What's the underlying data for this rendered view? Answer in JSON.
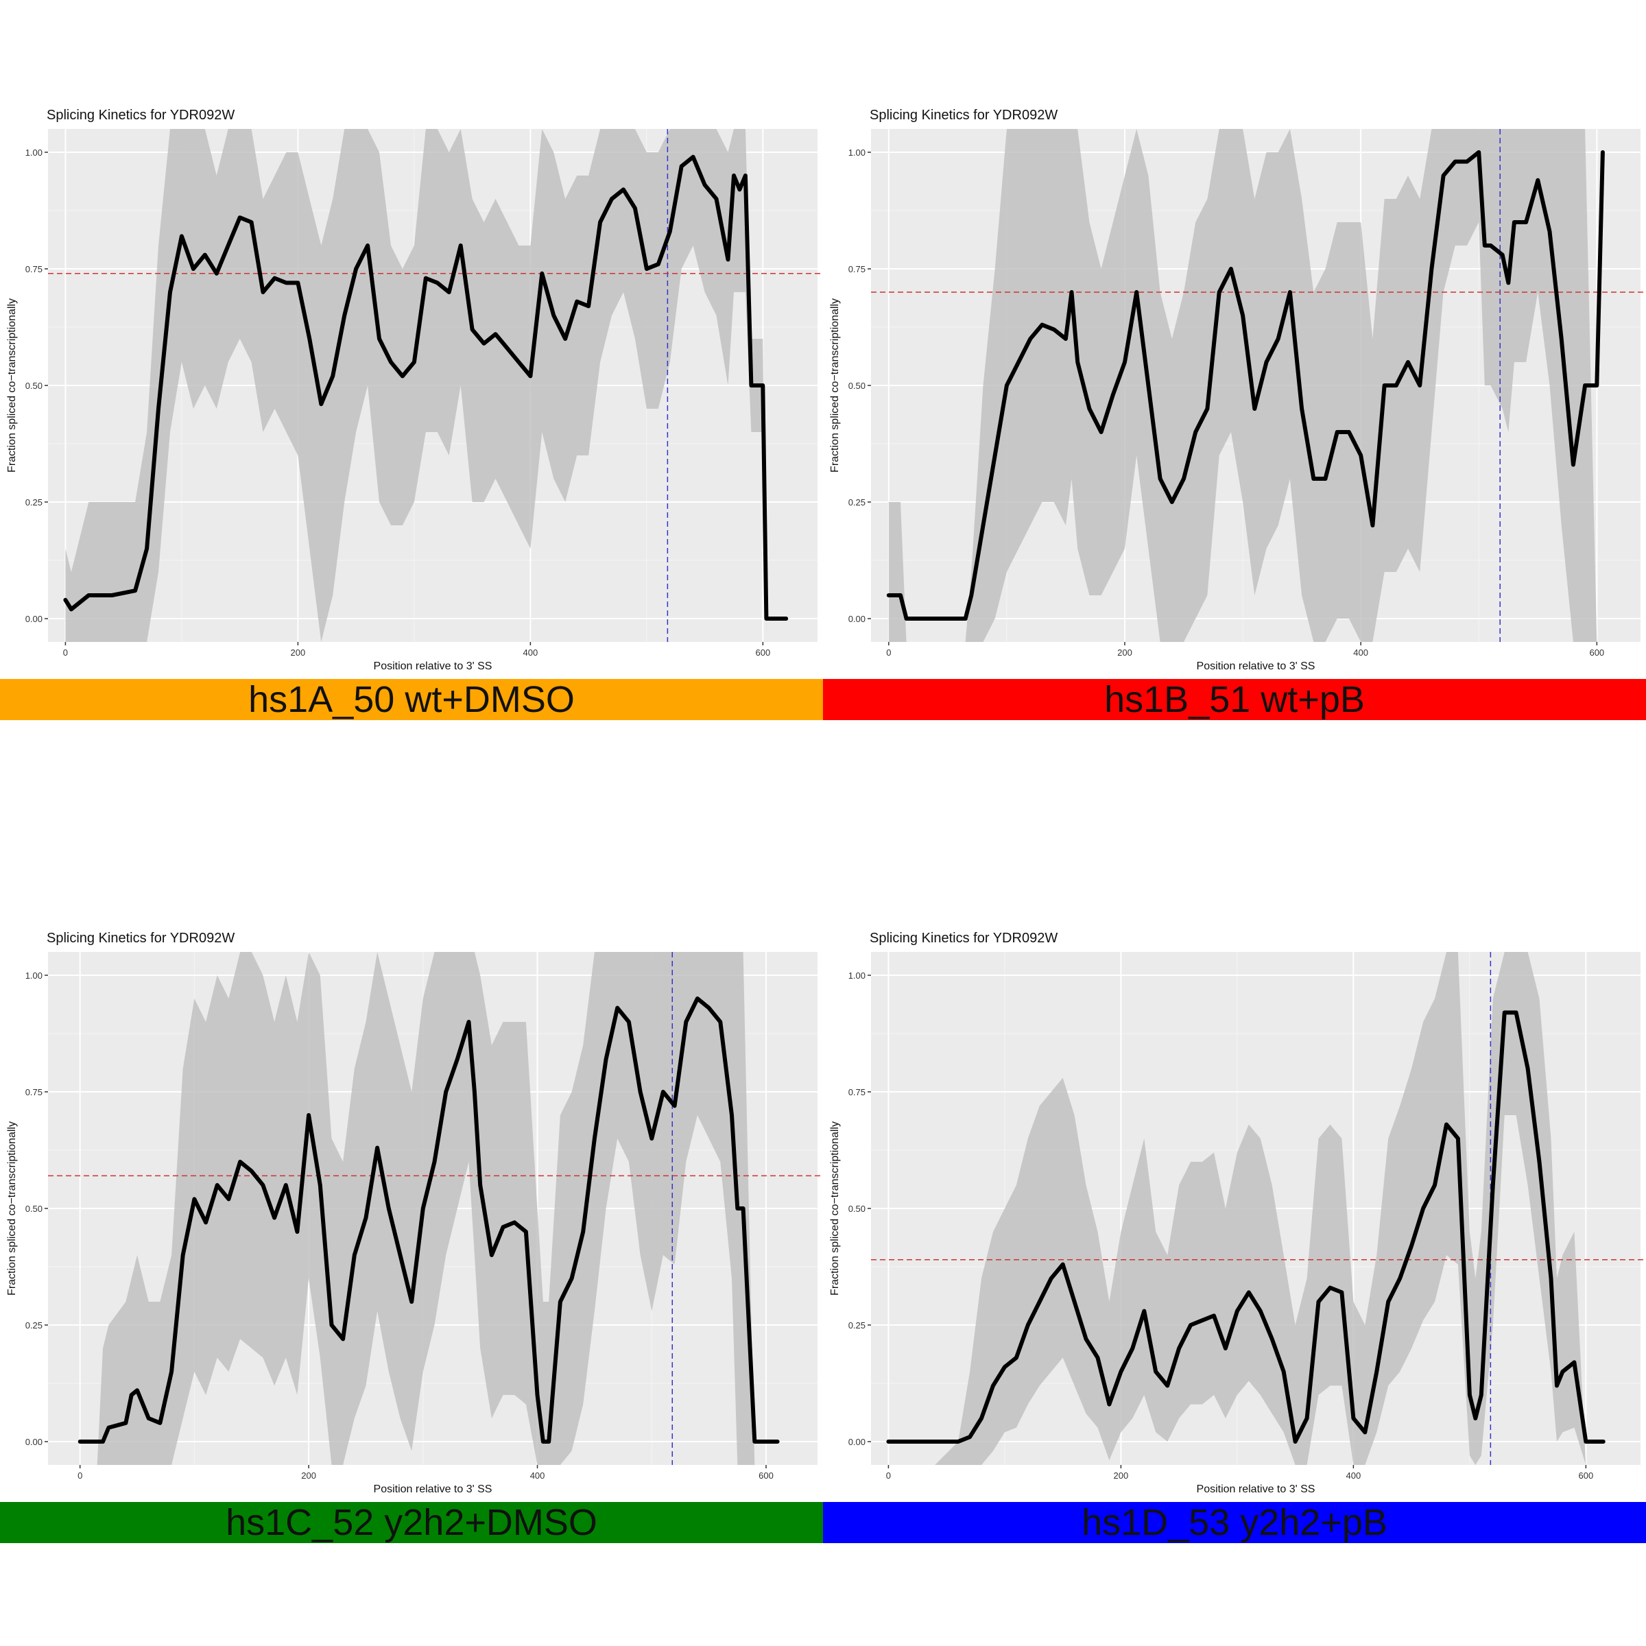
{
  "chart_data": [
    {
      "type": "line",
      "title": "Splicing Kinetics for YDR092W",
      "xlabel": "Position relative to 3' SS",
      "ylabel": "Fraction spliced co−transcriptionally",
      "xlim": [
        -15,
        647
      ],
      "ylim": [
        -0.05,
        1.05
      ],
      "xticks": [
        "0",
        "200",
        "400",
        "600"
      ],
      "yticks": [
        "0.00",
        "0.25",
        "0.50",
        "0.75",
        "1.00"
      ],
      "grid": true,
      "banner": "hs1A_50 wt+DMSO",
      "banner_color": "#FFA500",
      "hline": 0.74,
      "vline": 518,
      "x": [
        0,
        5,
        20,
        40,
        60,
        70,
        80,
        90,
        100,
        110,
        120,
        130,
        140,
        150,
        160,
        170,
        180,
        190,
        200,
        210,
        220,
        230,
        240,
        250,
        260,
        270,
        280,
        290,
        300,
        310,
        320,
        330,
        340,
        350,
        360,
        370,
        380,
        390,
        400,
        410,
        420,
        430,
        440,
        450,
        460,
        470,
        480,
        490,
        500,
        510,
        520,
        530,
        540,
        550,
        560,
        570,
        575,
        580,
        585,
        590,
        600,
        603,
        610,
        620
      ],
      "values": [
        0.04,
        0.02,
        0.05,
        0.05,
        0.06,
        0.15,
        0.45,
        0.7,
        0.82,
        0.75,
        0.78,
        0.74,
        0.8,
        0.86,
        0.85,
        0.7,
        0.73,
        0.72,
        0.72,
        0.6,
        0.46,
        0.52,
        0.65,
        0.75,
        0.8,
        0.6,
        0.55,
        0.52,
        0.55,
        0.73,
        0.72,
        0.7,
        0.8,
        0.62,
        0.59,
        0.61,
        0.58,
        0.55,
        0.52,
        0.74,
        0.65,
        0.6,
        0.68,
        0.67,
        0.85,
        0.9,
        0.92,
        0.88,
        0.75,
        0.76,
        0.83,
        0.97,
        0.99,
        0.93,
        0.9,
        0.77,
        0.95,
        0.92,
        0.95,
        0.5,
        0.5,
        0.0,
        0.0,
        0.0
      ],
      "ci_upper": [
        0.15,
        0.1,
        0.25,
        0.25,
        0.25,
        0.4,
        0.8,
        1.05,
        1.05,
        1.05,
        1.05,
        0.95,
        1.05,
        1.05,
        1.05,
        0.9,
        0.95,
        1.0,
        1.0,
        0.9,
        0.8,
        0.9,
        1.05,
        1.05,
        1.05,
        1.0,
        0.8,
        0.75,
        0.8,
        1.05,
        1.05,
        1.0,
        1.05,
        0.9,
        0.85,
        0.9,
        0.85,
        0.8,
        0.8,
        1.05,
        1.0,
        0.9,
        0.95,
        0.95,
        1.05,
        1.05,
        1.05,
        1.05,
        1.0,
        1.0,
        1.05,
        1.05,
        1.05,
        1.05,
        1.05,
        1.0,
        1.05,
        1.05,
        1.05,
        0.6,
        0.6,
        -0.05,
        -0.05,
        -0.05
      ],
      "ci_lower": [
        -0.05,
        -0.05,
        -0.05,
        -0.05,
        -0.05,
        -0.05,
        0.1,
        0.4,
        0.55,
        0.45,
        0.5,
        0.45,
        0.55,
        0.6,
        0.55,
        0.4,
        0.45,
        0.4,
        0.35,
        0.15,
        -0.05,
        0.05,
        0.25,
        0.4,
        0.5,
        0.25,
        0.2,
        0.2,
        0.25,
        0.4,
        0.4,
        0.35,
        0.5,
        0.25,
        0.25,
        0.3,
        0.25,
        0.2,
        0.15,
        0.4,
        0.3,
        0.25,
        0.35,
        0.35,
        0.55,
        0.65,
        0.7,
        0.6,
        0.45,
        0.45,
        0.55,
        0.75,
        0.8,
        0.7,
        0.65,
        0.5,
        0.7,
        0.7,
        0.7,
        0.4,
        0.4,
        -0.05,
        -0.05,
        -0.05
      ]
    },
    {
      "type": "line",
      "title": "Splicing Kinetics for YDR092W",
      "xlabel": "Position relative to 3' SS",
      "ylabel": "Fraction spliced co−transcriptionally",
      "xlim": [
        -15,
        637
      ],
      "ylim": [
        -0.05,
        1.05
      ],
      "xticks": [
        "0",
        "200",
        "400",
        "600"
      ],
      "yticks": [
        "0.00",
        "0.25",
        "0.50",
        "0.75",
        "1.00"
      ],
      "grid": true,
      "banner": "hs1B_51 wt+pB",
      "banner_color": "#FF0000",
      "hline": 0.7,
      "vline": 518,
      "x": [
        0,
        10,
        15,
        20,
        40,
        60,
        65,
        70,
        80,
        90,
        100,
        110,
        120,
        130,
        140,
        150,
        155,
        160,
        170,
        180,
        190,
        200,
        210,
        220,
        230,
        240,
        250,
        260,
        270,
        280,
        290,
        300,
        310,
        320,
        330,
        340,
        350,
        360,
        370,
        380,
        390,
        400,
        410,
        420,
        430,
        440,
        450,
        460,
        470,
        480,
        490,
        500,
        505,
        510,
        520,
        525,
        530,
        540,
        550,
        560,
        570,
        580,
        590,
        600,
        605
      ],
      "values": [
        0.05,
        0.05,
        0.0,
        0.0,
        0.0,
        0.0,
        0.0,
        0.05,
        0.2,
        0.35,
        0.5,
        0.55,
        0.6,
        0.63,
        0.62,
        0.6,
        0.7,
        0.55,
        0.45,
        0.4,
        0.48,
        0.55,
        0.7,
        0.5,
        0.3,
        0.25,
        0.3,
        0.4,
        0.45,
        0.7,
        0.75,
        0.65,
        0.45,
        0.55,
        0.6,
        0.7,
        0.45,
        0.3,
        0.3,
        0.4,
        0.4,
        0.35,
        0.2,
        0.5,
        0.5,
        0.55,
        0.5,
        0.75,
        0.95,
        0.98,
        0.98,
        1.0,
        0.8,
        0.8,
        0.78,
        0.72,
        0.85,
        0.85,
        0.94,
        0.83,
        0.6,
        0.33,
        0.5,
        0.5,
        1.0
      ],
      "ci_upper": [
        0.25,
        0.25,
        -0.05,
        -0.05,
        -0.05,
        -0.05,
        -0.05,
        0.1,
        0.5,
        0.75,
        1.05,
        1.05,
        1.05,
        1.05,
        1.05,
        1.05,
        1.05,
        1.05,
        0.85,
        0.75,
        0.85,
        0.95,
        1.05,
        0.95,
        0.7,
        0.6,
        0.7,
        0.85,
        0.9,
        1.05,
        1.05,
        1.05,
        0.9,
        1.0,
        1.0,
        1.05,
        0.9,
        0.7,
        0.75,
        0.85,
        0.85,
        0.85,
        0.6,
        0.9,
        0.9,
        0.95,
        0.9,
        1.05,
        1.05,
        1.05,
        1.05,
        1.05,
        1.05,
        1.05,
        1.05,
        1.05,
        1.05,
        1.05,
        1.05,
        1.05,
        1.05,
        1.05,
        1.05,
        -0.05,
        -0.05
      ],
      "ci_lower": [
        -0.05,
        -0.05,
        -0.05,
        -0.05,
        -0.05,
        -0.05,
        -0.05,
        -0.05,
        -0.05,
        0.0,
        0.1,
        0.15,
        0.2,
        0.25,
        0.25,
        0.2,
        0.3,
        0.15,
        0.05,
        0.05,
        0.1,
        0.15,
        0.35,
        0.15,
        -0.05,
        -0.05,
        -0.05,
        0.0,
        0.05,
        0.35,
        0.4,
        0.25,
        0.05,
        0.15,
        0.2,
        0.3,
        0.05,
        -0.05,
        -0.05,
        0.0,
        0.0,
        -0.05,
        -0.05,
        0.1,
        0.1,
        0.15,
        0.1,
        0.4,
        0.7,
        0.8,
        0.8,
        0.85,
        0.5,
        0.5,
        0.45,
        0.4,
        0.55,
        0.55,
        0.7,
        0.5,
        0.2,
        -0.05,
        -0.05,
        -0.05,
        -0.05
      ]
    },
    {
      "type": "line",
      "title": "Splicing Kinetics for YDR092W",
      "xlabel": "Position relative to 3' SS",
      "ylabel": "Fraction spliced co−transcriptionally",
      "xlim": [
        -28,
        645
      ],
      "ylim": [
        -0.05,
        1.05
      ],
      "xticks": [
        "0",
        "200",
        "400",
        "600"
      ],
      "yticks": [
        "0.00",
        "0.25",
        "0.50",
        "0.75",
        "1.00"
      ],
      "grid": true,
      "banner": "hs1C_52 y2h2+DMSO",
      "banner_color": "#008000",
      "hline": 0.57,
      "vline": 518,
      "x": [
        0,
        15,
        20,
        25,
        40,
        45,
        50,
        60,
        70,
        80,
        90,
        100,
        110,
        120,
        130,
        140,
        150,
        160,
        170,
        180,
        190,
        200,
        210,
        220,
        230,
        240,
        250,
        260,
        270,
        280,
        290,
        300,
        310,
        320,
        330,
        340,
        345,
        350,
        360,
        370,
        380,
        390,
        400,
        405,
        410,
        420,
        430,
        440,
        450,
        460,
        470,
        480,
        490,
        500,
        510,
        520,
        530,
        540,
        550,
        560,
        570,
        575,
        580,
        590,
        610
      ],
      "values": [
        0.0,
        0.0,
        0.0,
        0.03,
        0.04,
        0.1,
        0.11,
        0.05,
        0.04,
        0.15,
        0.4,
        0.52,
        0.47,
        0.55,
        0.52,
        0.6,
        0.58,
        0.55,
        0.48,
        0.55,
        0.45,
        0.7,
        0.55,
        0.25,
        0.22,
        0.4,
        0.48,
        0.63,
        0.5,
        0.4,
        0.3,
        0.5,
        0.6,
        0.75,
        0.82,
        0.9,
        0.75,
        0.55,
        0.4,
        0.46,
        0.47,
        0.45,
        0.1,
        0.0,
        0.0,
        0.3,
        0.35,
        0.45,
        0.65,
        0.82,
        0.93,
        0.9,
        0.75,
        0.65,
        0.75,
        0.72,
        0.9,
        0.95,
        0.93,
        0.9,
        0.7,
        0.5,
        0.5,
        0.0,
        0.0
      ],
      "ci_upper": [
        -0.05,
        -0.05,
        0.2,
        0.25,
        0.3,
        0.35,
        0.4,
        0.3,
        0.3,
        0.4,
        0.8,
        0.95,
        0.9,
        1.0,
        0.95,
        1.05,
        1.05,
        1.0,
        0.9,
        1.0,
        0.9,
        1.05,
        1.0,
        0.65,
        0.6,
        0.8,
        0.9,
        1.05,
        0.95,
        0.85,
        0.75,
        0.95,
        1.05,
        1.05,
        1.05,
        1.05,
        1.05,
        1.0,
        0.85,
        0.9,
        0.9,
        0.9,
        0.5,
        0.3,
        0.3,
        0.7,
        0.75,
        0.85,
        1.05,
        1.05,
        1.05,
        1.05,
        1.05,
        1.05,
        1.05,
        1.05,
        1.05,
        1.05,
        1.05,
        1.05,
        1.05,
        1.05,
        1.05,
        -0.05,
        -0.05
      ],
      "ci_lower": [
        -0.05,
        -0.05,
        -0.05,
        -0.05,
        -0.05,
        -0.05,
        -0.05,
        -0.05,
        -0.05,
        -0.05,
        0.05,
        0.15,
        0.1,
        0.18,
        0.15,
        0.22,
        0.2,
        0.18,
        0.12,
        0.18,
        0.1,
        0.35,
        0.18,
        -0.05,
        -0.05,
        0.05,
        0.12,
        0.28,
        0.15,
        0.05,
        -0.02,
        0.15,
        0.25,
        0.4,
        0.5,
        0.6,
        0.4,
        0.2,
        0.05,
        0.1,
        0.1,
        0.08,
        -0.05,
        -0.05,
        -0.05,
        -0.05,
        -0.02,
        0.08,
        0.28,
        0.5,
        0.65,
        0.6,
        0.4,
        0.28,
        0.4,
        0.38,
        0.6,
        0.7,
        0.65,
        0.6,
        0.35,
        -0.05,
        -0.05,
        -0.05,
        -0.05
      ]
    },
    {
      "type": "line",
      "title": "Splicing Kinetics for YDR092W",
      "xlabel": "Position relative to 3' SS",
      "ylabel": "Fraction spliced co−transcriptionally",
      "xlim": [
        -15,
        647
      ],
      "ylim": [
        -0.05,
        1.05
      ],
      "xticks": [
        "0",
        "200",
        "400",
        "600"
      ],
      "yticks": [
        "0.00",
        "0.25",
        "0.50",
        "0.75",
        "1.00"
      ],
      "grid": true,
      "banner": "hs1D_53 y2h2+pB",
      "banner_color": "#0000FF",
      "hline": 0.39,
      "vline": 518,
      "x": [
        0,
        20,
        40,
        60,
        70,
        80,
        90,
        100,
        110,
        120,
        130,
        140,
        150,
        160,
        170,
        180,
        190,
        200,
        210,
        220,
        230,
        240,
        250,
        260,
        270,
        280,
        290,
        300,
        310,
        320,
        330,
        340,
        350,
        360,
        370,
        380,
        390,
        400,
        410,
        420,
        430,
        440,
        450,
        460,
        470,
        480,
        490,
        500,
        505,
        510,
        520,
        530,
        540,
        550,
        560,
        570,
        575,
        580,
        590,
        600,
        610,
        615
      ],
      "values": [
        0.0,
        0.0,
        0.0,
        0.0,
        0.01,
        0.05,
        0.12,
        0.16,
        0.18,
        0.25,
        0.3,
        0.35,
        0.38,
        0.3,
        0.22,
        0.18,
        0.08,
        0.15,
        0.2,
        0.28,
        0.15,
        0.12,
        0.2,
        0.25,
        0.26,
        0.27,
        0.2,
        0.28,
        0.32,
        0.28,
        0.22,
        0.15,
        0.0,
        0.05,
        0.3,
        0.33,
        0.32,
        0.05,
        0.02,
        0.15,
        0.3,
        0.35,
        0.42,
        0.5,
        0.55,
        0.68,
        0.65,
        0.1,
        0.05,
        0.1,
        0.55,
        0.92,
        0.92,
        0.8,
        0.6,
        0.35,
        0.12,
        0.15,
        0.17,
        0.0,
        0.0,
        0.0
      ],
      "ci_upper": [
        -0.05,
        -0.05,
        -0.05,
        0.0,
        0.15,
        0.35,
        0.45,
        0.5,
        0.55,
        0.65,
        0.72,
        0.75,
        0.78,
        0.7,
        0.55,
        0.45,
        0.3,
        0.45,
        0.55,
        0.65,
        0.45,
        0.4,
        0.55,
        0.6,
        0.6,
        0.62,
        0.5,
        0.62,
        0.68,
        0.65,
        0.55,
        0.4,
        0.25,
        0.35,
        0.65,
        0.68,
        0.65,
        0.3,
        0.25,
        0.4,
        0.65,
        0.72,
        0.8,
        0.9,
        0.95,
        1.05,
        1.05,
        0.45,
        0.35,
        0.45,
        0.95,
        1.05,
        1.05,
        1.05,
        0.95,
        0.65,
        0.35,
        0.4,
        0.45,
        -0.05,
        -0.05,
        -0.05
      ],
      "ci_lower": [
        -0.05,
        -0.05,
        -0.05,
        -0.05,
        -0.05,
        -0.05,
        -0.02,
        0.02,
        0.03,
        0.08,
        0.12,
        0.15,
        0.18,
        0.12,
        0.06,
        0.03,
        -0.04,
        0.02,
        0.05,
        0.1,
        0.02,
        0.0,
        0.05,
        0.08,
        0.08,
        0.1,
        0.05,
        0.1,
        0.13,
        0.1,
        0.06,
        0.02,
        -0.05,
        -0.05,
        0.1,
        0.12,
        0.12,
        -0.05,
        -0.05,
        0.02,
        0.12,
        0.15,
        0.2,
        0.26,
        0.3,
        0.4,
        0.38,
        -0.03,
        -0.05,
        -0.03,
        0.25,
        0.7,
        0.7,
        0.55,
        0.35,
        0.15,
        0.0,
        0.02,
        0.03,
        -0.05,
        -0.05,
        -0.05
      ]
    }
  ]
}
